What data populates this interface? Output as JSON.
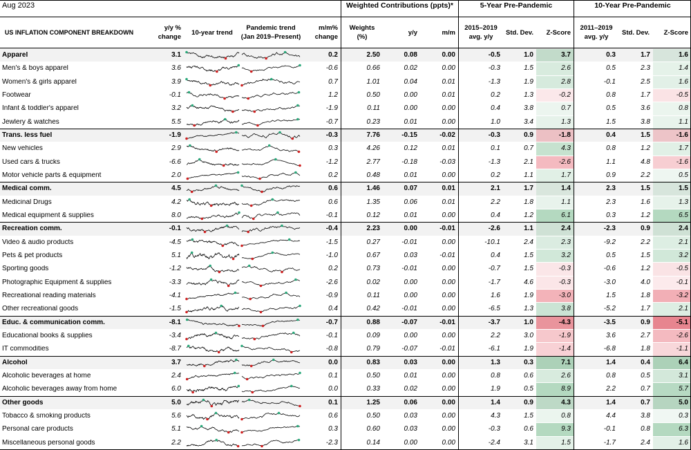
{
  "header": {
    "date": "Aug 2023",
    "group_weighted": "Weighted Contributions (ppts)*",
    "group_5y": "5-Year Pre-Pandemic",
    "group_10y": "10-Year Pre-Pandemic",
    "col_name": "US INFLATION COMPONENT BREAKDOWN",
    "col_yy": [
      "y/y %",
      "change"
    ],
    "col_trend10": "10-year trend",
    "col_trendpan": [
      "Pandemic trend",
      "(Jan 2019–Present)"
    ],
    "col_mm": [
      "m/m%",
      "change"
    ],
    "col_weights": [
      "Weights",
      "(%)"
    ],
    "col_wyy": "y/y",
    "col_wmm": "m/m",
    "col_5avg": [
      "2015–2019",
      "avg. y/y"
    ],
    "col_5sd": "Std. Dev.",
    "col_5z": "Z-Score",
    "col_10avg": [
      "2011–2019",
      "avg. y/y"
    ],
    "col_10sd": "Std. Dev.",
    "col_10z": "Z-Score"
  },
  "colors": {
    "bold_row_bg": "#f2f2f2",
    "zpos": "#3a9a5a",
    "zneg": "#e04050",
    "spark_max": "#2aa87a",
    "spark_min": "#d02020"
  },
  "rows": [
    {
      "name": "Apparel",
      "bold": true,
      "yy": "3.1",
      "mm": "0.2",
      "w": "2.50",
      "wyy": "0.08",
      "wmm": "0.00",
      "a5": "-0.5",
      "s5": "1.0",
      "z5": "3.7",
      "a10": "0.3",
      "s10": "1.7",
      "z10": "1.6"
    },
    {
      "name": "Men's & boys apparel",
      "bold": false,
      "yy": "3.6",
      "mm": "-0.6",
      "w": "0.66",
      "wyy": "0.02",
      "wmm": "0.00",
      "a5": "-0.3",
      "s5": "1.5",
      "z5": "2.6",
      "a10": "0.5",
      "s10": "2.3",
      "z10": "1.4"
    },
    {
      "name": "Women's & girls apparel",
      "bold": false,
      "yy": "3.9",
      "mm": "0.7",
      "w": "1.01",
      "wyy": "0.04",
      "wmm": "0.01",
      "a5": "-1.3",
      "s5": "1.9",
      "z5": "2.8",
      "a10": "-0.1",
      "s10": "2.5",
      "z10": "1.6"
    },
    {
      "name": "Footwear",
      "bold": false,
      "yy": "-0.1",
      "mm": "1.2",
      "w": "0.50",
      "wyy": "0.00",
      "wmm": "0.01",
      "a5": "0.2",
      "s5": "1.3",
      "z5": "-0.2",
      "a10": "0.8",
      "s10": "1.7",
      "z10": "-0.5"
    },
    {
      "name": "Infant & toddler's apparel",
      "bold": false,
      "yy": "3.2",
      "mm": "-1.9",
      "w": "0.11",
      "wyy": "0.00",
      "wmm": "0.00",
      "a5": "0.4",
      "s5": "3.8",
      "z5": "0.7",
      "a10": "0.5",
      "s10": "3.6",
      "z10": "0.8"
    },
    {
      "name": "Jewlery & watches",
      "bold": false,
      "yy": "5.5",
      "mm": "-0.7",
      "w": "0.23",
      "wyy": "0.01",
      "wmm": "0.00",
      "a5": "1.0",
      "s5": "3.4",
      "z5": "1.3",
      "a10": "1.5",
      "s10": "3.8",
      "z10": "1.1"
    },
    {
      "name": "Trans. less fuel",
      "bold": true,
      "yy": "-1.9",
      "mm": "-0.3",
      "w": "7.76",
      "wyy": "-0.15",
      "wmm": "-0.02",
      "a5": "-0.3",
      "s5": "0.9",
      "z5": "-1.8",
      "a10": "0.4",
      "s10": "1.5",
      "z10": "-1.6"
    },
    {
      "name": "New vehicles",
      "bold": false,
      "yy": "2.9",
      "mm": "0.3",
      "w": "4.26",
      "wyy": "0.12",
      "wmm": "0.01",
      "a5": "0.1",
      "s5": "0.7",
      "z5": "4.3",
      "a10": "0.8",
      "s10": "1.2",
      "z10": "1.7"
    },
    {
      "name": "Used cars & trucks",
      "bold": false,
      "yy": "-6.6",
      "mm": "-1.2",
      "w": "2.77",
      "wyy": "-0.18",
      "wmm": "-0.03",
      "a5": "-1.3",
      "s5": "2.1",
      "z5": "-2.6",
      "a10": "1.1",
      "s10": "4.8",
      "z10": "-1.6"
    },
    {
      "name": "Motor vehicle parts & equipment",
      "bold": false,
      "yy": "2.0",
      "mm": "0.2",
      "w": "0.48",
      "wyy": "0.01",
      "wmm": "0.00",
      "a5": "0.2",
      "s5": "1.1",
      "z5": "1.7",
      "a10": "0.9",
      "s10": "2.2",
      "z10": "0.5"
    },
    {
      "name": "Medical comm.",
      "bold": true,
      "yy": "4.5",
      "mm": "0.6",
      "w": "1.46",
      "wyy": "0.07",
      "wmm": "0.01",
      "a5": "2.1",
      "s5": "1.7",
      "z5": "1.4",
      "a10": "2.3",
      "s10": "1.5",
      "z10": "1.5"
    },
    {
      "name": "Medicinal Drugs",
      "bold": false,
      "yy": "4.2",
      "mm": "0.6",
      "w": "1.35",
      "wyy": "0.06",
      "wmm": "0.01",
      "a5": "2.2",
      "s5": "1.8",
      "z5": "1.1",
      "a10": "2.3",
      "s10": "1.6",
      "z10": "1.3"
    },
    {
      "name": "Medical equipment & supplies",
      "bold": false,
      "yy": "8.0",
      "mm": "-0.1",
      "w": "0.12",
      "wyy": "0.01",
      "wmm": "0.00",
      "a5": "0.4",
      "s5": "1.2",
      "z5": "6.1",
      "a10": "0.3",
      "s10": "1.2",
      "z10": "6.5"
    },
    {
      "name": "Recreation comm.",
      "bold": true,
      "yy": "-0.1",
      "mm": "-0.4",
      "w": "2.23",
      "wyy": "0.00",
      "wmm": "-0.01",
      "a5": "-2.6",
      "s5": "1.1",
      "z5": "2.4",
      "a10": "-2.3",
      "s10": "0.9",
      "z10": "2.4"
    },
    {
      "name": "Video & audio products",
      "bold": false,
      "yy": "-4.5",
      "mm": "-1.5",
      "w": "0.27",
      "wyy": "-0.01",
      "wmm": "0.00",
      "a5": "-10.1",
      "s5": "2.4",
      "z5": "2.3",
      "a10": "-9.2",
      "s10": "2.2",
      "z10": "2.1"
    },
    {
      "name": "Pets & pet products",
      "bold": false,
      "yy": "5.1",
      "mm": "-1.0",
      "w": "0.67",
      "wyy": "0.03",
      "wmm": "-0.01",
      "a5": "0.4",
      "s5": "1.5",
      "z5": "3.2",
      "a10": "0.5",
      "s10": "1.5",
      "z10": "3.2"
    },
    {
      "name": "Sporting goods",
      "bold": false,
      "yy": "-1.2",
      "mm": "0.2",
      "w": "0.73",
      "wyy": "-0.01",
      "wmm": "0.00",
      "a5": "-0.7",
      "s5": "1.5",
      "z5": "-0.3",
      "a10": "-0.6",
      "s10": "1.2",
      "z10": "-0.5"
    },
    {
      "name": "Photographic Equipment & supplies",
      "bold": false,
      "yy": "-3.3",
      "mm": "-2.6",
      "w": "0.02",
      "wyy": "0.00",
      "wmm": "0.00",
      "a5": "-1.7",
      "s5": "4.6",
      "z5": "-0.3",
      "a10": "-3.0",
      "s10": "4.0",
      "z10": "-0.1"
    },
    {
      "name": "Recreational reading materials",
      "bold": false,
      "yy": "-4.1",
      "mm": "-0.9",
      "w": "0.11",
      "wyy": "0.00",
      "wmm": "0.00",
      "a5": "1.6",
      "s5": "1.9",
      "z5": "-3.0",
      "a10": "1.5",
      "s10": "1.8",
      "z10": "-3.2"
    },
    {
      "name": "Other recreational goods",
      "bold": false,
      "yy": "-1.5",
      "mm": "0.4",
      "w": "0.42",
      "wyy": "-0.01",
      "wmm": "0.00",
      "a5": "-6.5",
      "s5": "1.3",
      "z5": "3.8",
      "a10": "-5.2",
      "s10": "1.7",
      "z10": "2.1"
    },
    {
      "name": "Educ. & communication comm.",
      "bold": true,
      "yy": "-8.1",
      "mm": "-0.7",
      "w": "0.88",
      "wyy": "-0.07",
      "wmm": "-0.01",
      "a5": "-3.7",
      "s5": "1.0",
      "z5": "-4.3",
      "a10": "-3.5",
      "s10": "0.9",
      "z10": "-5.1"
    },
    {
      "name": "Educational books & supplies",
      "bold": false,
      "yy": "-3.4",
      "mm": "-0.1",
      "w": "0.09",
      "wyy": "0.00",
      "wmm": "0.00",
      "a5": "2.2",
      "s5": "3.0",
      "z5": "-1.9",
      "a10": "3.6",
      "s10": "2.7",
      "z10": "-2.6"
    },
    {
      "name": "IT commodities",
      "bold": false,
      "yy": "-8.7",
      "mm": "-0.8",
      "w": "0.79",
      "wyy": "-0.07",
      "wmm": "-0.01",
      "a5": "-6.1",
      "s5": "1.9",
      "z5": "-1.4",
      "a10": "-6.8",
      "s10": "1.8",
      "z10": "-1.1"
    },
    {
      "name": "Alcohol",
      "bold": true,
      "yy": "3.7",
      "mm": "0.0",
      "w": "0.83",
      "wyy": "0.03",
      "wmm": "0.00",
      "a5": "1.3",
      "s5": "0.3",
      "z5": "7.1",
      "a10": "1.4",
      "s10": "0.4",
      "z10": "6.4"
    },
    {
      "name": "Alcoholic beverages at home",
      "bold": false,
      "yy": "2.4",
      "mm": "0.1",
      "w": "0.50",
      "wyy": "0.01",
      "wmm": "0.00",
      "a5": "0.8",
      "s5": "0.6",
      "z5": "2.6",
      "a10": "0.8",
      "s10": "0.5",
      "z10": "3.1"
    },
    {
      "name": "Alcoholic beverages away from home",
      "bold": false,
      "yy": "6.0",
      "mm": "0.0",
      "w": "0.33",
      "wyy": "0.02",
      "wmm": "0.00",
      "a5": "1.9",
      "s5": "0.5",
      "z5": "8.9",
      "a10": "2.2",
      "s10": "0.7",
      "z10": "5.7"
    },
    {
      "name": "Other goods",
      "bold": true,
      "yy": "5.0",
      "mm": "0.1",
      "w": "1.25",
      "wyy": "0.06",
      "wmm": "0.00",
      "a5": "1.4",
      "s5": "0.9",
      "z5": "4.3",
      "a10": "1.4",
      "s10": "0.7",
      "z10": "5.0"
    },
    {
      "name": "Tobacco & smoking products",
      "bold": false,
      "yy": "5.6",
      "mm": "0.6",
      "w": "0.50",
      "wyy": "0.03",
      "wmm": "0.00",
      "a5": "4.3",
      "s5": "1.5",
      "z5": "0.8",
      "a10": "4.4",
      "s10": "3.8",
      "z10": "0.3"
    },
    {
      "name": "Personal care products",
      "bold": false,
      "yy": "5.1",
      "mm": "0.3",
      "w": "0.60",
      "wyy": "0.03",
      "wmm": "0.00",
      "a5": "-0.3",
      "s5": "0.6",
      "z5": "9.3",
      "a10": "-0.1",
      "s10": "0.8",
      "z10": "6.3"
    },
    {
      "name": "Miscellaneous personal goods",
      "bold": false,
      "yy": "2.2",
      "mm": "-2.3",
      "w": "0.14",
      "wyy": "0.00",
      "wmm": "0.00",
      "a5": "-2.4",
      "s5": "3.1",
      "z5": "1.5",
      "a10": "-1.7",
      "s10": "2.4",
      "z10": "1.6"
    }
  ]
}
